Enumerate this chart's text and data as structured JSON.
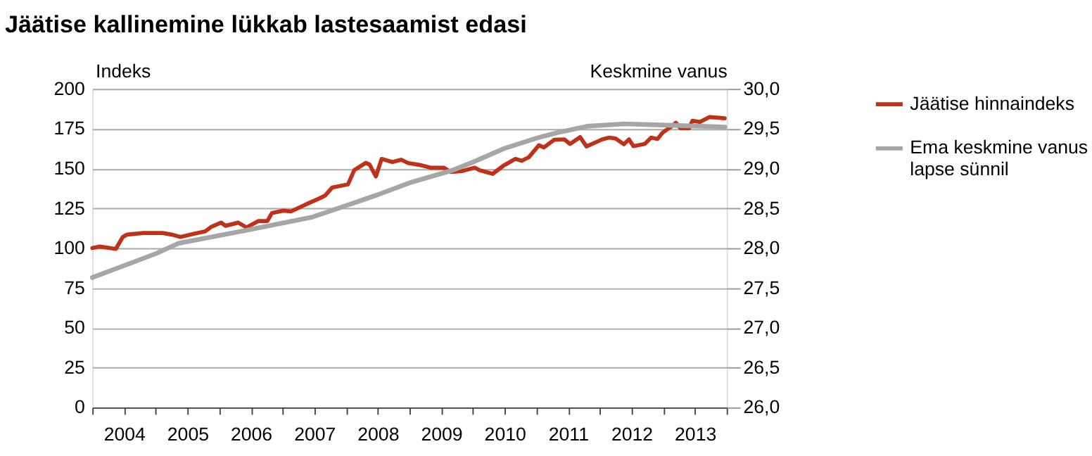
{
  "chart_data": {
    "type": "line",
    "title": "Jäätise kallinemine lükkab lastesaamist edasi",
    "ylabel": "Indeks",
    "y2label": "Keskmine vanus",
    "xlim": [
      2004,
      2014
    ],
    "xticks": [
      {
        "value": 2004,
        "label": null
      },
      {
        "value": 2004.5,
        "label": "2004"
      },
      {
        "value": 2005,
        "label": null
      },
      {
        "value": 2005.5,
        "label": "2005"
      },
      {
        "value": 2006,
        "label": null
      },
      {
        "value": 2006.5,
        "label": "2006"
      },
      {
        "value": 2007,
        "label": null
      },
      {
        "value": 2007.5,
        "label": "2007"
      },
      {
        "value": 2008,
        "label": null
      },
      {
        "value": 2008.5,
        "label": "2008"
      },
      {
        "value": 2009,
        "label": null
      },
      {
        "value": 2009.5,
        "label": "2009"
      },
      {
        "value": 2010,
        "label": null
      },
      {
        "value": 2010.5,
        "label": "2010"
      },
      {
        "value": 2011,
        "label": null
      },
      {
        "value": 2011.5,
        "label": "2011"
      },
      {
        "value": 2012,
        "label": null
      },
      {
        "value": 2012.5,
        "label": "2012"
      },
      {
        "value": 2013,
        "label": null
      },
      {
        "value": 2013.5,
        "label": "2013"
      },
      {
        "value": 2014,
        "label": null
      }
    ],
    "ylim": [
      0,
      200
    ],
    "yticks": [
      0,
      25,
      50,
      75,
      100,
      125,
      150,
      175,
      200
    ],
    "y2lim": [
      26.0,
      30.0
    ],
    "y2ticks": [
      {
        "value": 26.0,
        "label": "26,0"
      },
      {
        "value": 26.5,
        "label": "26,5"
      },
      {
        "value": 27.0,
        "label": "27,0"
      },
      {
        "value": 27.5,
        "label": "27,5"
      },
      {
        "value": 28.0,
        "label": "28,0"
      },
      {
        "value": 28.5,
        "label": "28,5"
      },
      {
        "value": 29.0,
        "label": "29,0"
      },
      {
        "value": 29.5,
        "label": "29,5"
      },
      {
        "value": 30.0,
        "label": "30,0"
      }
    ],
    "grid": "y",
    "legend": "right",
    "marker": "none",
    "line_style": "solid",
    "series": [
      {
        "name": "Jäätise hinnaindeks",
        "color": "#c0311a",
        "x": [
          2004.0,
          2004.12,
          2004.37,
          2004.48,
          2004.55,
          2004.8,
          2005.11,
          2005.25,
          2005.39,
          2005.6,
          2005.78,
          2005.88,
          2006.03,
          2006.1,
          2006.3,
          2006.43,
          2006.62,
          2006.76,
          2006.83,
          2007.01,
          2007.13,
          2007.4,
          2007.57,
          2007.67,
          2007.78,
          2008.03,
          2008.13,
          2008.31,
          2008.37,
          2008.47,
          2008.56,
          2008.73,
          2008.87,
          2008.98,
          2009.19,
          2009.33,
          2009.54,
          2009.65,
          2009.82,
          2010.03,
          2010.1,
          2010.31,
          2010.49,
          2010.67,
          2010.77,
          2010.88,
          2011.04,
          2011.12,
          2011.28,
          2011.44,
          2011.53,
          2011.69,
          2011.79,
          2012.04,
          2012.15,
          2012.25,
          2012.38,
          2012.46,
          2012.53,
          2012.71,
          2012.81,
          2012.91,
          2012.99,
          2013.13,
          2013.2,
          2013.27,
          2013.41,
          2013.46,
          2013.58,
          2013.73,
          2013.97
        ],
        "values": [
          100,
          101,
          99.5,
          107,
          108.5,
          109.5,
          109.5,
          108.5,
          107,
          109,
          110.5,
          113.5,
          116,
          114,
          116,
          113,
          117,
          117,
          122,
          123.5,
          123,
          128,
          131,
          133,
          138,
          140,
          149,
          153.5,
          152.5,
          145,
          156,
          154,
          155.5,
          153.4,
          152,
          150.5,
          150.5,
          147.8,
          148.3,
          150.5,
          149,
          146.6,
          152,
          156,
          154.8,
          157,
          164.6,
          163.2,
          168,
          168.3,
          165.4,
          169.7,
          163.8,
          168.3,
          169.4,
          168.8,
          165.2,
          168.3,
          164,
          165.4,
          169.4,
          168.5,
          172.5,
          176.4,
          178.7,
          175.3,
          175.3,
          180,
          179.2,
          182.3,
          181.5
        ]
      },
      {
        "name": "Ema keskmine vanus lapse sünnil",
        "color": "#a6a6a6",
        "axis": "y2",
        "x": [
          2004.0,
          2005.0,
          2005.36,
          2006.4,
          2007.47,
          2008.5,
          2009.0,
          2009.65,
          2010.0,
          2010.49,
          2011.0,
          2011.33,
          2011.8,
          2012.39,
          2013.23,
          2013.97
        ],
        "values": [
          27.63,
          27.93,
          28.06,
          28.22,
          28.39,
          28.67,
          28.82,
          28.97,
          29.08,
          29.25,
          29.38,
          29.45,
          29.53,
          29.56,
          29.54,
          29.52
        ]
      }
    ]
  }
}
